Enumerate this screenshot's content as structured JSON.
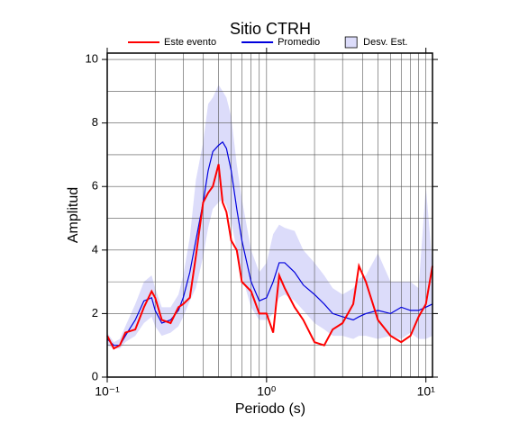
{
  "chart_data": {
    "type": "line",
    "title": "Sitio CTRH",
    "xlabel": "Periodo (s)",
    "ylabel": "Amplitud",
    "xscale": "log",
    "xlim": [
      0.1,
      11
    ],
    "ylim": [
      0,
      10.2
    ],
    "xticks": [
      {
        "value": 0.1,
        "label": "10⁻¹"
      },
      {
        "value": 1,
        "label": "10⁰"
      },
      {
        "value": 10,
        "label": "10¹"
      }
    ],
    "yticks": [
      0,
      2,
      4,
      6,
      8,
      10
    ],
    "x_grid": [
      0.2,
      0.3,
      0.4,
      0.5,
      0.6,
      0.7,
      0.8,
      0.9,
      1,
      2,
      3,
      4,
      5,
      6,
      7,
      8,
      9,
      10
    ],
    "y_grid": [
      1,
      2,
      3,
      4,
      5,
      6,
      7,
      8,
      9,
      10
    ],
    "legend": "top",
    "x": [
      0.1,
      0.11,
      0.12,
      0.13,
      0.15,
      0.17,
      0.19,
      0.2,
      0.22,
      0.25,
      0.28,
      0.3,
      0.33,
      0.36,
      0.4,
      0.43,
      0.46,
      0.5,
      0.53,
      0.56,
      0.6,
      0.65,
      0.7,
      0.8,
      0.9,
      1.0,
      1.1,
      1.2,
      1.3,
      1.5,
      1.7,
      2.0,
      2.3,
      2.6,
      3.0,
      3.5,
      3.8,
      4.2,
      5,
      6,
      7,
      8,
      9,
      10,
      11
    ],
    "series": [
      {
        "name": "Este evento",
        "color": "#ff0000",
        "values": [
          1.3,
          0.9,
          1.0,
          1.4,
          1.5,
          2.2,
          2.7,
          2.5,
          1.8,
          1.7,
          2.2,
          2.3,
          2.5,
          3.8,
          5.5,
          5.8,
          6.0,
          6.7,
          5.5,
          5.2,
          4.3,
          4.0,
          3.0,
          2.7,
          2.0,
          2.0,
          1.4,
          3.2,
          2.8,
          2.2,
          1.8,
          1.1,
          1.0,
          1.5,
          1.7,
          2.3,
          3.5,
          3.0,
          1.8,
          1.3,
          1.1,
          1.3,
          1.9,
          2.3,
          3.5
        ]
      },
      {
        "name": "Promedio",
        "color": "#0000dd",
        "values": [
          1.2,
          1.0,
          1.0,
          1.3,
          1.8,
          2.4,
          2.5,
          2.1,
          1.7,
          1.8,
          2.1,
          2.5,
          3.3,
          4.3,
          5.5,
          6.5,
          7.1,
          7.3,
          7.4,
          7.2,
          6.5,
          5.3,
          4.3,
          3.0,
          2.4,
          2.5,
          3.0,
          3.6,
          3.6,
          3.3,
          2.9,
          2.6,
          2.3,
          2.0,
          1.9,
          1.8,
          1.9,
          2.0,
          2.1,
          2.0,
          2.2,
          2.1,
          2.1,
          2.2,
          2.3
        ]
      }
    ],
    "bands": [
      {
        "name": "Desv. Est.",
        "color": "#dcdcfa",
        "high": [
          1.4,
          1.1,
          1.2,
          1.6,
          2.3,
          3.0,
          3.2,
          2.8,
          2.2,
          2.2,
          2.6,
          3.2,
          4.4,
          6.2,
          7.4,
          8.6,
          8.8,
          9.2,
          9.0,
          8.8,
          8.2,
          6.7,
          5.6,
          4.0,
          3.3,
          3.6,
          4.5,
          4.8,
          4.7,
          4.6,
          4.0,
          3.6,
          3.2,
          2.8,
          2.6,
          2.8,
          3.1,
          3.2,
          3.9,
          3.0,
          3.0,
          3.0,
          2.8,
          6.0,
          3.5
        ],
        "low": [
          1.0,
          0.9,
          0.9,
          1.1,
          1.3,
          1.7,
          1.9,
          1.6,
          1.3,
          1.4,
          1.6,
          1.9,
          2.4,
          2.8,
          3.8,
          4.7,
          5.3,
          5.5,
          5.6,
          5.4,
          4.9,
          4.0,
          3.2,
          2.2,
          1.8,
          1.8,
          2.0,
          2.5,
          2.6,
          2.4,
          2.1,
          1.7,
          1.5,
          1.3,
          1.3,
          1.2,
          1.3,
          1.3,
          1.2,
          1.3,
          1.2,
          1.4,
          1.2,
          1.2,
          1.3
        ]
      }
    ]
  }
}
